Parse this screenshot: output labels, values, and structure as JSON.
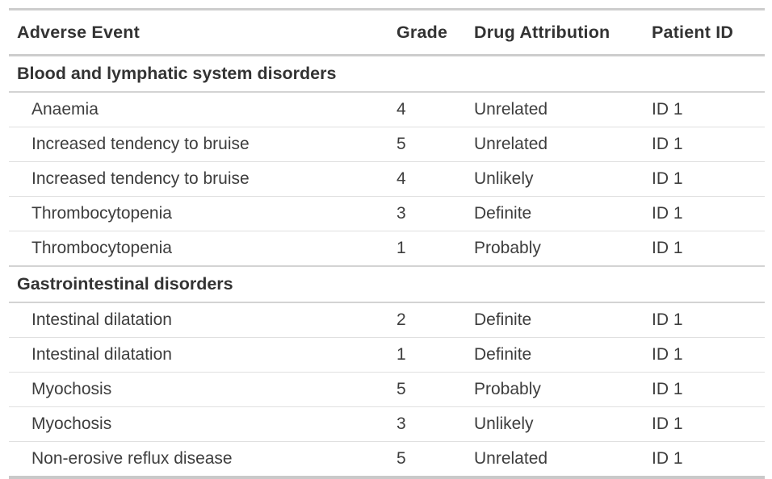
{
  "chart_data": {
    "type": "table",
    "columns": [
      "Adverse Event",
      "Grade",
      "Drug Attribution",
      "Patient ID"
    ],
    "groups": [
      {
        "label": "Blood and lymphatic system disorders",
        "rows": [
          [
            "Anaemia",
            "4",
            "Unrelated",
            "ID 1"
          ],
          [
            "Increased tendency to bruise",
            "5",
            "Unrelated",
            "ID 1"
          ],
          [
            "Increased tendency to bruise",
            "4",
            "Unlikely",
            "ID 1"
          ],
          [
            "Thrombocytopenia",
            "3",
            "Definite",
            "ID 1"
          ],
          [
            "Thrombocytopenia",
            "1",
            "Probably",
            "ID 1"
          ]
        ]
      },
      {
        "label": "Gastrointestinal disorders",
        "rows": [
          [
            "Intestinal dilatation",
            "2",
            "Definite",
            "ID 1"
          ],
          [
            "Intestinal dilatation",
            "1",
            "Definite",
            "ID 1"
          ],
          [
            "Myochosis",
            "5",
            "Probably",
            "ID 1"
          ],
          [
            "Myochosis",
            "3",
            "Unlikely",
            "ID 1"
          ],
          [
            "Non-erosive reflux disease",
            "5",
            "Unrelated",
            "ID 1"
          ]
        ]
      }
    ]
  },
  "colors": {
    "text_body": "#3d3d3d",
    "text_header": "#333333",
    "border_heavy": "#cdcdcd",
    "border_group": "#d3d3d3",
    "border_row": "#e0e0e0",
    "background": "#ffffff"
  }
}
